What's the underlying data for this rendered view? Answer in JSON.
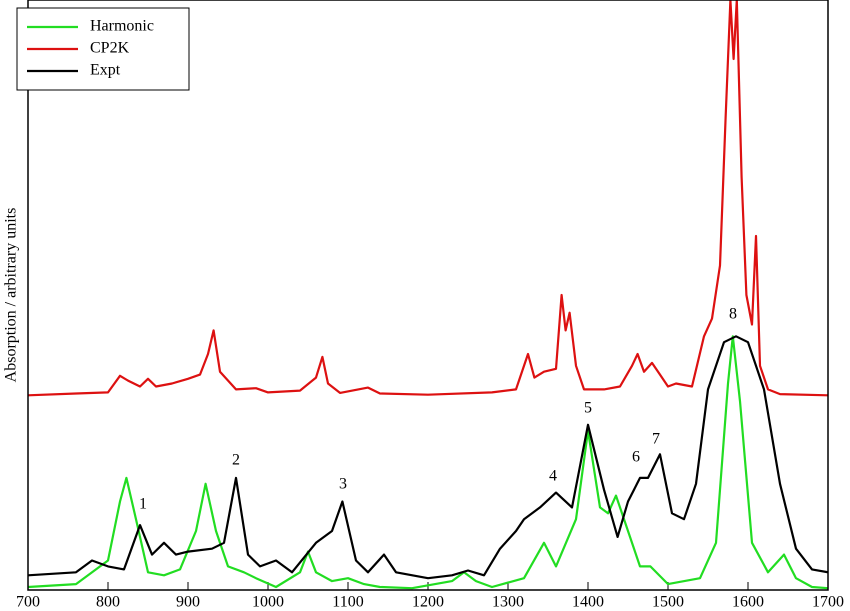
{
  "chart_data": {
    "type": "line",
    "ylabel": "Absorption / arbitrary units",
    "xlim": [
      700,
      1700
    ],
    "xticks": [
      700,
      800,
      900,
      1000,
      1100,
      1200,
      1300,
      1400,
      1500,
      1600,
      1700
    ],
    "ylim": [
      0,
      100
    ],
    "legend": "top-left",
    "annotations": [
      "1",
      "2",
      "3",
      "4",
      "5",
      "6",
      "7",
      "8"
    ],
    "series": [
      {
        "name": "Harmonic",
        "color": "#22dd22",
        "x": [
          700,
          760,
          800,
          815,
          823,
          835,
          850,
          870,
          890,
          910,
          922,
          935,
          950,
          970,
          985,
          1010,
          1040,
          1050,
          1060,
          1080,
          1100,
          1120,
          1140,
          1180,
          1230,
          1245,
          1260,
          1280,
          1320,
          1345,
          1360,
          1385,
          1400,
          1415,
          1425,
          1435,
          1450,
          1465,
          1478,
          1500,
          1540,
          1560,
          1575,
          1581,
          1590,
          1605,
          1625,
          1645,
          1660,
          1680,
          1700
        ],
        "values": [
          0.5,
          1,
          5,
          15,
          19,
          12,
          3,
          2.5,
          3.5,
          10,
          18,
          10,
          4,
          3,
          2,
          0.5,
          3,
          6.5,
          3,
          1.5,
          2,
          1,
          0.5,
          0.3,
          1.5,
          3,
          1.5,
          0.5,
          2,
          8,
          4,
          12,
          27,
          14,
          13,
          16,
          10,
          4,
          4,
          1,
          2,
          8,
          35,
          43,
          32,
          8,
          3,
          6,
          2,
          0.5,
          0.3
        ]
      },
      {
        "name": "CP2K",
        "color": "#dd1111",
        "x": [
          700,
          760,
          800,
          815,
          825,
          840,
          850,
          860,
          880,
          900,
          915,
          925,
          932,
          940,
          960,
          985,
          1000,
          1040,
          1060,
          1068,
          1075,
          1090,
          1125,
          1140,
          1200,
          1280,
          1310,
          1325,
          1333,
          1345,
          1360,
          1367,
          1372,
          1377,
          1385,
          1395,
          1420,
          1440,
          1455,
          1462,
          1470,
          1480,
          1490,
          1500,
          1510,
          1530,
          1545,
          1555,
          1565,
          1572,
          1578,
          1582,
          1586,
          1592,
          1598,
          1605,
          1610,
          1615,
          1625,
          1640,
          1700
        ],
        "values": [
          33,
          33.3,
          33.5,
          36.3,
          35.5,
          34.5,
          35.8,
          34.5,
          35,
          35.8,
          36.5,
          40,
          44,
          37,
          34,
          34.2,
          33.5,
          33.8,
          36,
          39.5,
          35,
          33.4,
          34.3,
          33.3,
          33.1,
          33.5,
          34,
          40,
          36,
          37,
          37.5,
          50,
          44,
          47,
          38,
          34,
          34,
          34.5,
          38,
          40,
          37,
          38.5,
          36.5,
          34.5,
          35,
          34.5,
          43,
          46,
          55,
          80,
          100,
          90,
          100,
          70,
          50,
          45,
          60,
          38,
          34,
          33.2,
          33
        ]
      },
      {
        "name": "Expt",
        "color": "#000000",
        "x": [
          700,
          760,
          780,
          800,
          820,
          840,
          855,
          870,
          885,
          900,
          930,
          945,
          960,
          975,
          990,
          1010,
          1030,
          1060,
          1080,
          1093,
          1110,
          1125,
          1145,
          1160,
          1200,
          1230,
          1250,
          1270,
          1290,
          1310,
          1320,
          1340,
          1360,
          1380,
          1400,
          1420,
          1437,
          1450,
          1465,
          1475,
          1490,
          1505,
          1520,
          1535,
          1550,
          1570,
          1585,
          1600,
          1620,
          1640,
          1660,
          1680,
          1700
        ],
        "values": [
          2.5,
          3,
          5,
          4,
          3.5,
          11,
          6,
          8,
          6,
          6.5,
          7,
          8,
          19,
          6,
          4,
          5,
          3,
          8,
          10,
          15,
          5,
          3,
          6,
          3,
          2,
          2.5,
          3.3,
          2.5,
          7,
          10,
          12,
          14,
          16.5,
          14,
          28,
          17,
          9,
          15,
          19,
          19,
          23,
          13,
          12,
          18,
          34,
          42,
          43,
          42,
          34,
          18,
          7,
          3.5,
          3
        ]
      }
    ]
  }
}
